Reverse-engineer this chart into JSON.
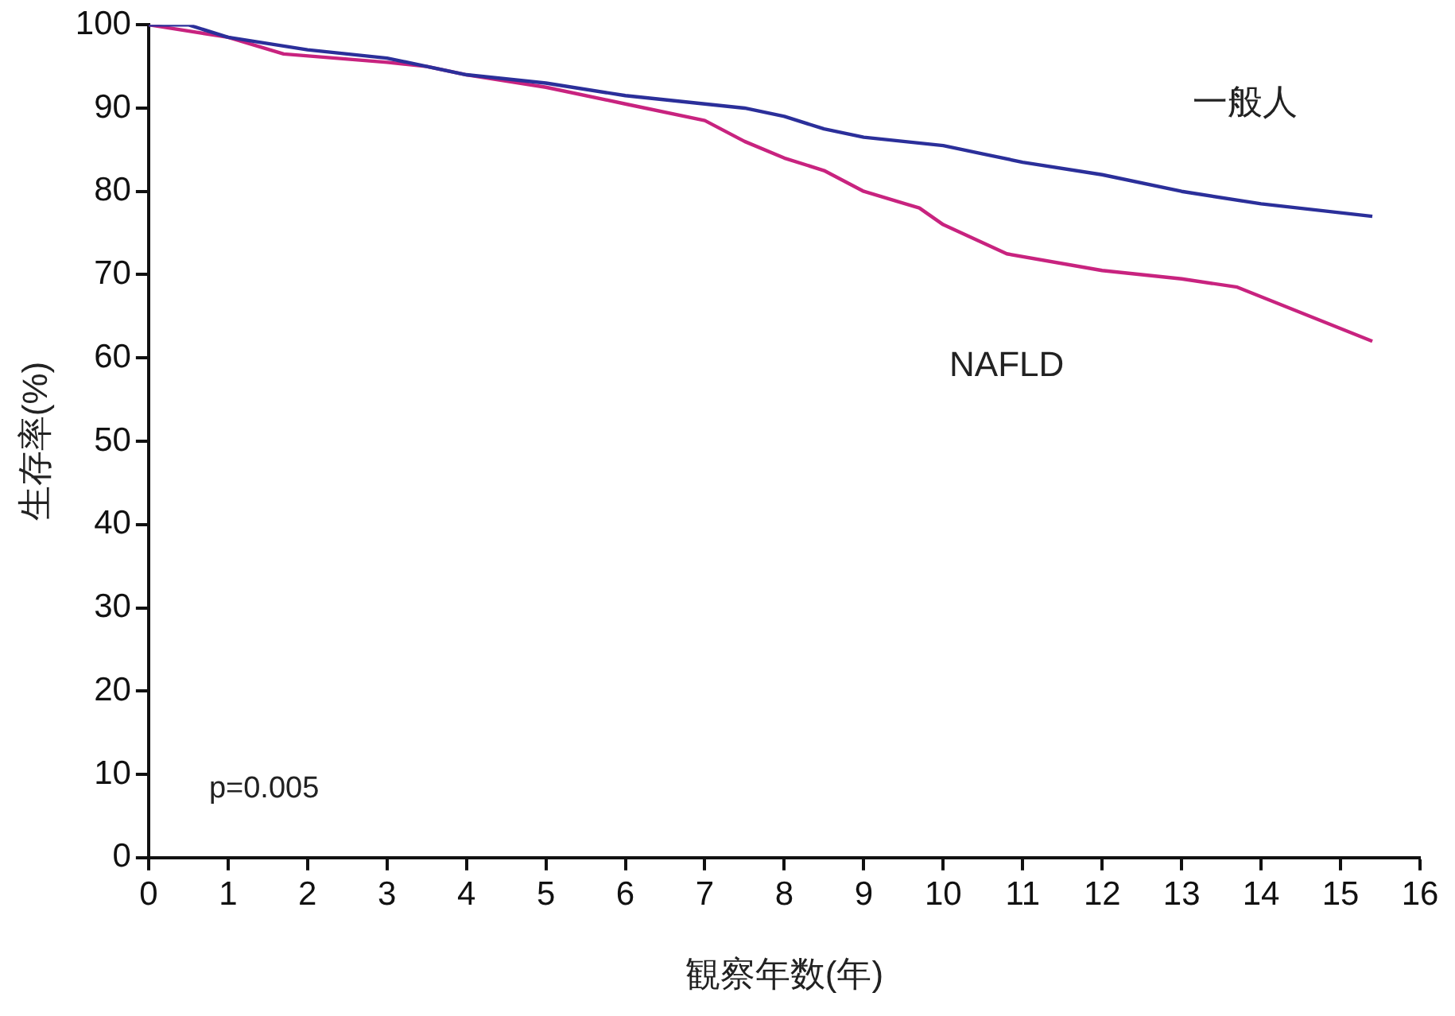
{
  "chart_data": {
    "type": "line",
    "xlabel": "観察年数(年)",
    "ylabel": "生存率(%)",
    "xlim": [
      0,
      16
    ],
    "xticks": [
      0,
      1,
      2,
      3,
      4,
      5,
      6,
      7,
      8,
      9,
      10,
      11,
      12,
      13,
      14,
      15,
      16
    ],
    "ylim": [
      0,
      100
    ],
    "yticks": [
      0,
      10,
      20,
      30,
      40,
      50,
      60,
      70,
      80,
      90,
      100
    ],
    "grid": false,
    "legend": false,
    "marker": "none",
    "annotations": [
      "p=0.005"
    ],
    "series": [
      {
        "name": "一般人",
        "color": "#2b2f9a",
        "x": [
          0,
          0.5,
          1,
          2,
          3,
          4,
          5,
          6,
          7,
          7.5,
          8,
          8.5,
          9,
          10,
          10.5,
          11,
          12,
          13,
          14,
          15.4
        ],
        "values": [
          100,
          100,
          98.5,
          97,
          96,
          94,
          93,
          91.5,
          90.5,
          90,
          89,
          87.5,
          86.5,
          85.5,
          84.5,
          83.5,
          82,
          80,
          78.5,
          77
        ]
      },
      {
        "name": "NAFLD",
        "color": "#c8237f",
        "x": [
          0,
          1,
          1.7,
          3,
          3.5,
          4,
          5,
          6,
          7,
          7.5,
          8,
          8.5,
          9,
          9.7,
          10,
          10.8,
          12,
          13,
          13.7,
          15.4
        ],
        "values": [
          100,
          98.5,
          96.5,
          95.5,
          95,
          94,
          92.5,
          90.5,
          88.5,
          86,
          84,
          82.5,
          80,
          78,
          76,
          72.5,
          70.5,
          69.5,
          68.5,
          62
        ]
      }
    ]
  }
}
